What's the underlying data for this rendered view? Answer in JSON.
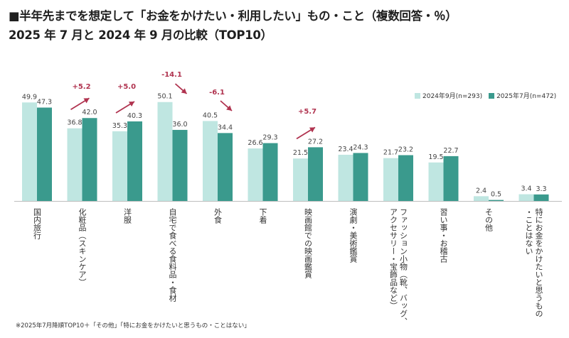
{
  "title_line1": "■半年先までを想定して「お金をかけたい・利用したい」もの・こと（複数回答・％）",
  "title_line2": "2025 年 7 月と 2024 年 9 月の比較（TOP10）",
  "footnote": "※2025年7月降順TOP10＋「その他」「特にお金をかけたいと思うもの・ことはない」",
  "colors": {
    "s2024": "#bfe6e1",
    "s2025": "#3a9a8d",
    "annotation": "#b0334f"
  },
  "chart_data": {
    "type": "bar",
    "title": "半年先までを想定して「お金をかけたい・利用したい」もの・こと（複数回答・％）",
    "categories": [
      "国内旅行",
      "化粧品（スキンケア）",
      "洋服",
      "自宅で食べる食料品・食材",
      "外食",
      "下着",
      "映画館での映画鑑賞",
      "演劇・美術鑑賞",
      "ファッション小物（靴、バッグ、アクセサリー・宝飾品など）",
      "習い事・お稽古",
      "その他",
      "特にお金をかけたいと思うもの・ことはない"
    ],
    "category_lines": [
      [
        "国内旅行"
      ],
      [
        "化粧品（スキンケア）"
      ],
      [
        "洋服"
      ],
      [
        "自宅で食べる食料品・食材"
      ],
      [
        "外食"
      ],
      [
        "下着"
      ],
      [
        "映画館での映画鑑賞"
      ],
      [
        "演劇・美術鑑賞"
      ],
      [
        "ファッション小物（靴、バッグ、",
        "アクセサリー・宝飾品など）"
      ],
      [
        "習い事・お稽古"
      ],
      [
        "その他"
      ],
      [
        "特にお金をかけたいと思うもの",
        "・ことはない"
      ]
    ],
    "series": [
      {
        "name": "2024年9月(n=293)",
        "values": [
          49.9,
          36.8,
          35.3,
          50.1,
          40.5,
          26.6,
          21.5,
          23.4,
          21.7,
          19.5,
          2.4,
          3.4
        ]
      },
      {
        "name": "2025年7月(n=472)",
        "values": [
          47.3,
          42.0,
          40.3,
          36.0,
          34.4,
          29.3,
          27.2,
          24.3,
          23.2,
          22.7,
          0.5,
          3.3
        ]
      }
    ],
    "annotations": [
      {
        "category_index": 1,
        "text": "+5.2",
        "direction": "up"
      },
      {
        "category_index": 2,
        "text": "+5.0",
        "direction": "up"
      },
      {
        "category_index": 3,
        "text": "-14.1",
        "direction": "down"
      },
      {
        "category_index": 4,
        "text": "-6.1",
        "direction": "down"
      },
      {
        "category_index": 6,
        "text": "+5.7",
        "direction": "up"
      }
    ],
    "ylim": [
      0,
      55
    ],
    "grid": false,
    "legend_position": "top-right"
  }
}
